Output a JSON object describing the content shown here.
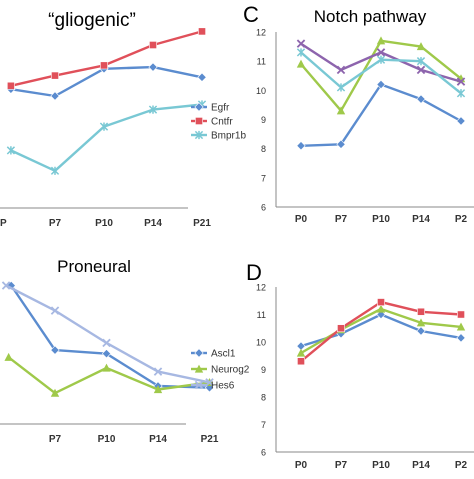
{
  "chart_data": [
    {
      "type": "line",
      "title": "“gliogenic”",
      "panel_letter": "",
      "categories": [
        "P7",
        "P10",
        "P14",
        "P21"
      ],
      "clip_left_label": "P",
      "series": [
        {
          "name": "Egfr",
          "color": "#5b8ccf",
          "marker": "diamond",
          "x": [
            -0.9,
            0.0,
            1.0,
            2.0,
            3.0
          ],
          "values": [
            9.2,
            9.0,
            9.8,
            9.85,
            9.55
          ]
        },
        {
          "name": "Cntfr",
          "color": "#e0505a",
          "marker": "square",
          "x": [
            -0.9,
            0.0,
            1.0,
            2.0,
            3.0
          ],
          "values": [
            9.3,
            9.6,
            9.9,
            10.5,
            10.9
          ]
        },
        {
          "name": "Bmpr1b",
          "color": "#79c8d4",
          "marker": "star",
          "x": [
            -0.9,
            0.0,
            1.0,
            2.0,
            3.0
          ],
          "values": [
            7.4,
            6.8,
            8.1,
            8.6,
            8.75
          ]
        }
      ],
      "ylim": [
        5,
        12
      ],
      "grid": false,
      "legend": "right"
    },
    {
      "type": "line",
      "title": "Notch pathway",
      "panel_letter": "C",
      "categories": [
        "P0",
        "P7",
        "P10",
        "P14",
        "P2"
      ],
      "yticks": [
        6,
        7,
        8,
        9,
        10,
        11,
        12
      ],
      "ylim": [
        6,
        12
      ],
      "series": [
        {
          "color": "#5b8ccf",
          "marker": "diamond",
          "values": [
            8.1,
            8.15,
            10.2,
            9.7,
            8.95
          ]
        },
        {
          "color": "#9fc94a",
          "marker": "triangle",
          "values": [
            10.9,
            9.3,
            11.7,
            11.5,
            10.4
          ]
        },
        {
          "color": "#8d64ad",
          "marker": "x",
          "values": [
            11.6,
            10.7,
            11.3,
            10.7,
            10.3
          ]
        },
        {
          "color": "#79c8d4",
          "marker": "star",
          "values": [
            11.3,
            10.1,
            11.05,
            11.0,
            9.9
          ]
        }
      ],
      "grid": false
    },
    {
      "type": "line",
      "title": "Proneural",
      "panel_letter": "",
      "categories": [
        "P7",
        "P10",
        "P14",
        "P21"
      ],
      "series": [
        {
          "name": "Ascl1",
          "color": "#5b8ccf",
          "marker": "diamond",
          "x": [
            -0.85,
            0.0,
            1.0,
            2.0,
            3.0
          ],
          "values": [
            10.2,
            8.4,
            8.3,
            7.4,
            7.35
          ]
        },
        {
          "name": "Neurog2",
          "color": "#9fc94a",
          "marker": "triangle",
          "x": [
            -0.9,
            0.0,
            1.0,
            2.0,
            3.0
          ],
          "values": [
            8.2,
            7.2,
            7.9,
            7.3,
            7.5
          ]
        },
        {
          "name": "Hes6",
          "color": "#a7b8e2",
          "marker": "x",
          "x": [
            -0.95,
            0.0,
            1.0,
            2.0,
            3.0
          ],
          "values": [
            10.2,
            9.5,
            8.6,
            7.8,
            7.5
          ]
        }
      ],
      "ylim": [
        5,
        12
      ],
      "grid": false,
      "legend": "right"
    },
    {
      "type": "line",
      "title": "",
      "panel_letter": "D",
      "categories": [
        "P0",
        "P7",
        "P10",
        "P14",
        "P2"
      ],
      "yticks": [
        6,
        7,
        8,
        9,
        10,
        11,
        12
      ],
      "ylim": [
        6,
        12
      ],
      "series": [
        {
          "color": "#5b8ccf",
          "marker": "diamond",
          "values": [
            9.85,
            10.3,
            11.0,
            10.4,
            10.15
          ]
        },
        {
          "color": "#9fc94a",
          "marker": "triangle",
          "values": [
            9.6,
            10.45,
            11.2,
            10.7,
            10.55
          ]
        },
        {
          "color": "#e0505a",
          "marker": "square",
          "values": [
            9.3,
            10.5,
            11.45,
            11.1,
            11.0
          ]
        }
      ],
      "grid": false
    }
  ]
}
